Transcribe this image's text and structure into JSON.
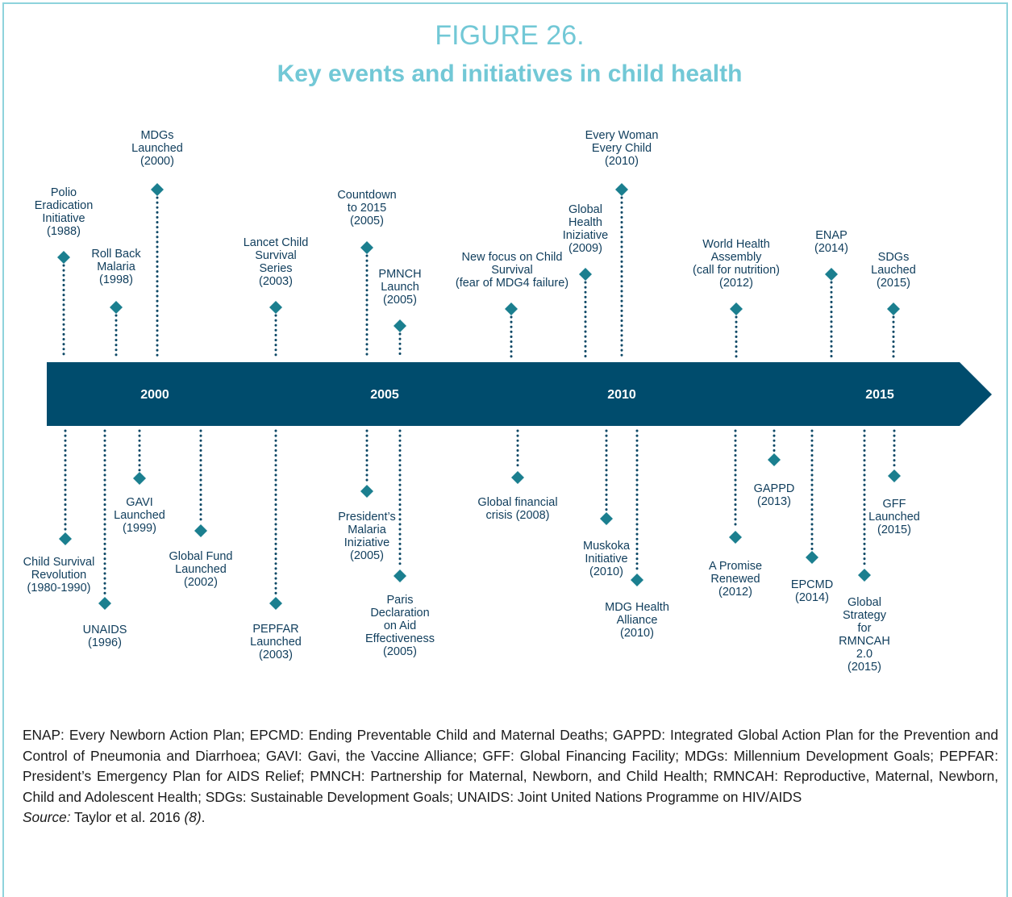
{
  "title": {
    "figure": "FIGURE 26.",
    "heading": "Key events and initiatives in child health"
  },
  "years": [
    "2000",
    "2005",
    "2010",
    "2015"
  ],
  "events_above": [
    {
      "lines": [
        "Polio",
        "Eradication",
        "Initiative",
        "(1988)"
      ]
    },
    {
      "lines": [
        "Roll Back",
        "Malaria",
        "(1998)"
      ]
    },
    {
      "lines": [
        "MDGs",
        "Launched",
        "(2000)"
      ]
    },
    {
      "lines": [
        "Lancet Child",
        "Survival",
        "Series",
        "(2003)"
      ]
    },
    {
      "lines": [
        "Countdown",
        "to 2015",
        "(2005)"
      ]
    },
    {
      "lines": [
        "PMNCH",
        "Launch",
        "(2005)"
      ]
    },
    {
      "lines": [
        "New focus on Child",
        "Survival",
        "(fear of MDG4 failure)"
      ]
    },
    {
      "lines": [
        "Global",
        "Health",
        "Iniziative",
        "(2009)"
      ]
    },
    {
      "lines": [
        "Every Woman",
        "Every Child",
        "(2010)"
      ]
    },
    {
      "lines": [
        "World Health",
        "Assembly",
        "(call for nutrition)",
        "(2012)"
      ]
    },
    {
      "lines": [
        "ENAP",
        "(2014)"
      ]
    },
    {
      "lines": [
        "SDGs",
        "Lauched",
        "(2015)"
      ]
    }
  ],
  "events_below": [
    {
      "lines": [
        "Child Survival",
        "Revolution",
        "(1980-1990)"
      ]
    },
    {
      "lines": [
        "UNAIDS",
        "(1996)"
      ]
    },
    {
      "lines": [
        "GAVI",
        "Launched",
        "(1999)"
      ]
    },
    {
      "lines": [
        "Global Fund",
        "Launched",
        "(2002)"
      ]
    },
    {
      "lines": [
        "PEPFAR",
        "Launched",
        "(2003)"
      ]
    },
    {
      "lines": [
        "President’s",
        "Malaria",
        "Iniziative",
        "(2005)"
      ]
    },
    {
      "lines": [
        "Paris",
        "Declaration",
        "on Aid",
        "Effectiveness",
        "(2005)"
      ]
    },
    {
      "lines": [
        "Global financial",
        "crisis (2008)"
      ]
    },
    {
      "lines": [
        "Muskoka",
        "Initiative",
        "(2010)"
      ]
    },
    {
      "lines": [
        "MDG Health",
        "Alliance",
        "(2010)"
      ]
    },
    {
      "lines": [
        "A Promise",
        "Renewed",
        "(2012)"
      ]
    },
    {
      "lines": [
        "GAPPD",
        "(2013)"
      ]
    },
    {
      "lines": [
        "EPCMD",
        "(2014)"
      ]
    },
    {
      "lines": [
        "Global",
        "Strategy",
        "for",
        "RMNCAH",
        "2.0",
        "(2015)"
      ]
    },
    {
      "lines": [
        "GFF",
        "Launched",
        "(2015)"
      ]
    }
  ],
  "footnote": "ENAP: Every Newborn Action Plan; EPCMD: Ending Preventable Child and Maternal Deaths; GAPPD: Integrated Global Action Plan for the Prevention and Control of Pneumonia and Diarrhoea; GAVI: Gavi, the Vaccine Alliance; GFF: Global Financing Facility; MDGs: Millennium Development Goals; PEPFAR: President’s Emergency Plan for AIDS Relief; PMNCH: Partnership for Maternal, Newborn, and Child Health; RMNCAH: Reproductive, Maternal, Newborn, Child and Adolescent Health; SDGs: Sustainable Development Goals; UNAIDS: Joint United Nations Programme on HIV/AIDS",
  "source": {
    "label": "Source:",
    "text": " Taylor et al. 2016 ",
    "ref": "(8)",
    "end": "."
  }
}
